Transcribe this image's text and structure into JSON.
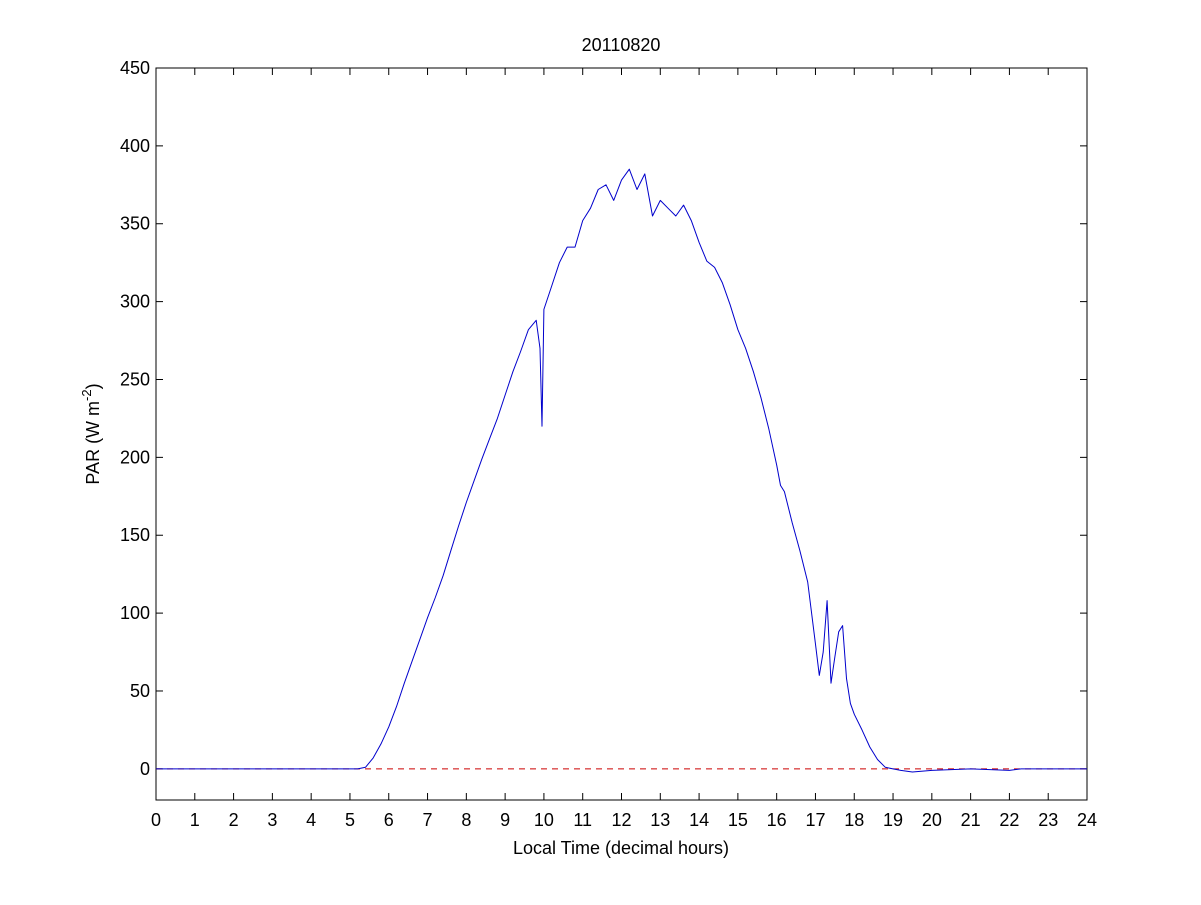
{
  "chart_data": {
    "type": "line",
    "title": "20110820",
    "xlabel": "Local Time (decimal hours)",
    "ylabel": {
      "main": "PAR (W m",
      "superscript": "-2",
      "close": ")"
    },
    "xlim": [
      0,
      24
    ],
    "ylim": [
      -20,
      450
    ],
    "xticks": [
      "0",
      "1",
      "2",
      "3",
      "4",
      "5",
      "6",
      "7",
      "8",
      "9",
      "10",
      "11",
      "12",
      "13",
      "14",
      "15",
      "16",
      "17",
      "18",
      "19",
      "20",
      "21",
      "22",
      "23",
      "24"
    ],
    "yticks": [
      "0",
      "50",
      "100",
      "150",
      "200",
      "250",
      "300",
      "350",
      "400",
      "450"
    ],
    "grid": false,
    "colors": {
      "series": "#0000cc",
      "reference": "#cc0000"
    },
    "series": [
      {
        "color": "#0000cc",
        "style": "solid",
        "x": [
          0,
          5.2,
          5.4,
          5.6,
          5.8,
          6.0,
          6.2,
          6.4,
          6.6,
          6.8,
          7.0,
          7.2,
          7.4,
          7.6,
          7.8,
          8.0,
          8.2,
          8.4,
          8.6,
          8.8,
          9.0,
          9.2,
          9.4,
          9.6,
          9.8,
          9.9,
          9.95,
          10.0,
          10.2,
          10.4,
          10.6,
          10.8,
          11.0,
          11.2,
          11.4,
          11.6,
          11.8,
          12.0,
          12.2,
          12.4,
          12.6,
          12.8,
          13.0,
          13.2,
          13.4,
          13.6,
          13.8,
          14.0,
          14.2,
          14.4,
          14.6,
          14.8,
          15.0,
          15.2,
          15.4,
          15.6,
          15.8,
          16.0,
          16.1,
          16.2,
          16.4,
          16.6,
          16.8,
          17.0,
          17.1,
          17.2,
          17.3,
          17.4,
          17.5,
          17.6,
          17.7,
          17.8,
          17.9,
          18.0,
          18.2,
          18.4,
          18.6,
          18.8,
          19.0,
          19.2,
          19.5,
          20.0,
          21.0,
          22.0,
          22.3,
          24.0
        ],
        "values": [
          0,
          0,
          1,
          7,
          16,
          27,
          40,
          55,
          69,
          83,
          97,
          110,
          124,
          140,
          156,
          171,
          185,
          199,
          212,
          225,
          240,
          255,
          268,
          282,
          288,
          270,
          220,
          295,
          310,
          325,
          335,
          335,
          352,
          360,
          372,
          375,
          365,
          378,
          385,
          372,
          382,
          355,
          365,
          360,
          355,
          362,
          352,
          338,
          326,
          322,
          312,
          298,
          282,
          270,
          255,
          238,
          218,
          195,
          182,
          178,
          158,
          140,
          120,
          80,
          60,
          75,
          108,
          55,
          72,
          88,
          92,
          58,
          42,
          35,
          25,
          14,
          6,
          1,
          0,
          -1,
          -2,
          -1,
          0,
          -1,
          0,
          0
        ]
      }
    ],
    "reference_lines": [
      {
        "y": 0,
        "style": "dashed",
        "color": "#cc0000"
      }
    ]
  }
}
